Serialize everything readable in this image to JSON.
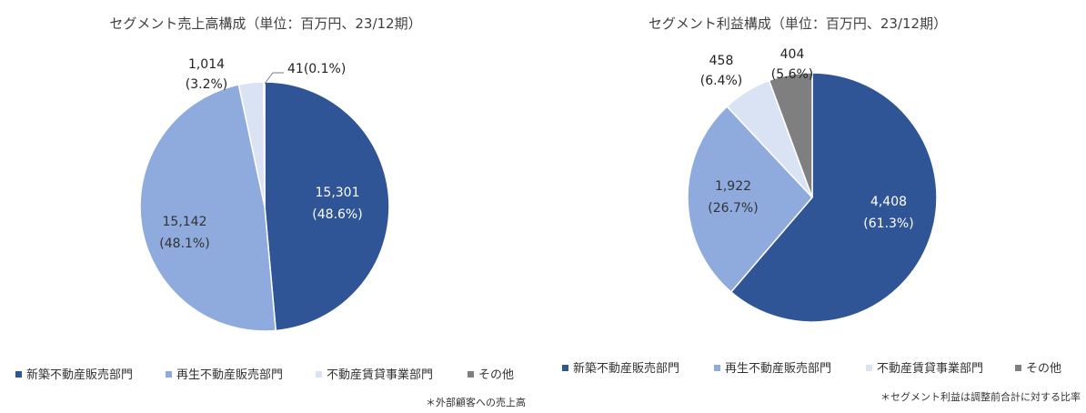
{
  "chart_data": [
    {
      "type": "pie",
      "title": "セグメント売上高構成（単位：百万円、23/12期）",
      "categories": [
        "新築不動産販売部門",
        "再生不動産販売部門",
        "不動産賃貸事業部門",
        "その他"
      ],
      "values": [
        15301,
        15142,
        1014,
        41
      ],
      "value_labels": [
        "15,301",
        "15,142",
        "1,014",
        "41"
      ],
      "percent_labels": [
        "(48.6%)",
        "(48.1%)",
        "(3.2%)",
        "(0.1%)"
      ],
      "combined_label_other": "41(0.1%)",
      "legend": "bottom",
      "note": "＊外部顧客への売上高"
    },
    {
      "type": "pie",
      "title": "セグメント利益構成（単位：百万円、23/12期）",
      "categories": [
        "新築不動産販売部門",
        "再生不動産販売部門",
        "不動産賃貸事業部門",
        "その他"
      ],
      "values": [
        4408,
        1922,
        458,
        404
      ],
      "value_labels": [
        "4,408",
        "1,922",
        "458",
        "404"
      ],
      "percent_labels": [
        "(61.3%)",
        "(26.7%)",
        "(6.4%)",
        "(5.6%)"
      ],
      "legend": "bottom",
      "note": "＊セグメント利益は調整前合計に対する比率"
    }
  ],
  "colors": [
    "#2f5597",
    "#8faadc",
    "#dae3f3",
    "#7f7f7f"
  ]
}
